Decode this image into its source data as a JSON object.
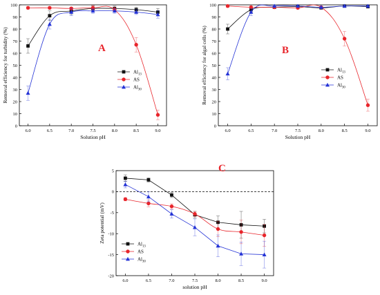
{
  "colors": {
    "Al13": "#111111",
    "AS": "#e8252b",
    "Al30": "#2433d6",
    "axis": "#000000",
    "panel_label": "#e8252b"
  },
  "chart_data": [
    {
      "type": "line",
      "panel_label": "A",
      "xlabel": "Solution pH",
      "ylabel": "Removal efficiency for turbidity (%)",
      "xlim": [
        5.8,
        9.2
      ],
      "ylim": [
        0,
        100
      ],
      "x_ticks": [
        "6.0",
        "6.5",
        "7.0",
        "7.5",
        "8.0",
        "8.5",
        "9.0"
      ],
      "y_ticks": [
        "0",
        "10",
        "20",
        "30",
        "40",
        "50",
        "60",
        "70",
        "80",
        "90",
        "100"
      ],
      "legend_position": "right-middle",
      "series": [
        {
          "name": "Al",
          "sub": "13",
          "marker": "square",
          "x": [
            6.0,
            6.5,
            7.0,
            7.5,
            8.0,
            8.5,
            9.0
          ],
          "y": [
            66,
            91,
            95,
            97,
            97,
            96,
            94
          ],
          "err": [
            6,
            4,
            3,
            2,
            2,
            2,
            3
          ]
        },
        {
          "name": "AS",
          "sub": "",
          "marker": "circle",
          "x": [
            6.0,
            6.5,
            7.0,
            7.5,
            8.0,
            8.5,
            9.0
          ],
          "y": [
            97.5,
            97.5,
            97,
            97.5,
            96,
            67,
            9
          ],
          "err": [
            1,
            1,
            1,
            2,
            2,
            6,
            4
          ]
        },
        {
          "name": "Al",
          "sub": "30",
          "marker": "triangle",
          "x": [
            6.0,
            6.5,
            7.0,
            7.5,
            8.0,
            8.5,
            9.0
          ],
          "y": [
            27,
            84,
            94,
            95,
            95,
            94,
            92
          ],
          "err": [
            6,
            4,
            3,
            2,
            2,
            2,
            3
          ]
        }
      ]
    },
    {
      "type": "line",
      "panel_label": "B",
      "xlabel": "Solution pH",
      "ylabel": "Removal efficiency for algal cells (%)",
      "xlim": [
        5.8,
        9.2
      ],
      "ylim": [
        0,
        100
      ],
      "x_ticks": [
        "6.0",
        "6.5",
        "7.0",
        "7.5",
        "8.0",
        "8.5",
        "9.0"
      ],
      "y_ticks": [
        "0",
        "10",
        "20",
        "30",
        "40",
        "50",
        "60",
        "70",
        "80",
        "90",
        "100"
      ],
      "legend_position": "right-middle",
      "series": [
        {
          "name": "Al",
          "sub": "13",
          "marker": "square",
          "x": [
            6.0,
            6.5,
            7.0,
            7.5,
            8.0,
            8.5,
            9.0
          ],
          "y": [
            80,
            96,
            98,
            98.5,
            97.5,
            99,
            98.5
          ],
          "err": [
            4,
            2,
            1,
            1,
            1,
            1,
            1
          ]
        },
        {
          "name": "AS",
          "sub": "",
          "marker": "circle",
          "x": [
            6.0,
            6.5,
            7.0,
            7.5,
            8.0,
            8.5,
            9.0
          ],
          "y": [
            99,
            98,
            98,
            97.5,
            98,
            72,
            17
          ],
          "err": [
            1,
            1,
            1,
            1,
            1,
            6,
            5
          ]
        },
        {
          "name": "Al",
          "sub": "30",
          "marker": "triangle",
          "x": [
            6.0,
            6.5,
            7.0,
            7.5,
            8.0,
            8.5,
            9.0
          ],
          "y": [
            43,
            94,
            99,
            99,
            98,
            99,
            99
          ],
          "err": [
            5,
            3,
            1,
            1,
            1,
            1,
            1
          ]
        }
      ]
    },
    {
      "type": "line",
      "panel_label": "C",
      "xlabel": "solution pH",
      "ylabel": "Zeta potential (mV)",
      "xlim": [
        5.8,
        9.2
      ],
      "ylim": [
        -20,
        5
      ],
      "x_ticks": [
        "6.0",
        "6.5",
        "7.0",
        "7.5",
        "8.0",
        "8.5",
        "9.0"
      ],
      "y_ticks": [
        "-20",
        "-15",
        "-10",
        "-5",
        "0",
        "5"
      ],
      "zero_line": true,
      "legend_position": "bottom-left",
      "series": [
        {
          "name": "Al",
          "sub": "13",
          "marker": "square",
          "x": [
            6.0,
            6.5,
            7.0,
            7.5,
            8.0,
            8.5,
            9.0
          ],
          "y": [
            3.2,
            2.8,
            -0.8,
            -5.5,
            -7.3,
            -7.9,
            -8.2
          ],
          "err": [
            0.8,
            0.5,
            0.6,
            0.8,
            1.5,
            3.2,
            1.6
          ]
        },
        {
          "name": "AS",
          "sub": "",
          "marker": "circle",
          "x": [
            6.0,
            6.5,
            7.0,
            7.5,
            8.0,
            8.5,
            9.0
          ],
          "y": [
            -1.8,
            -2.8,
            -3.5,
            -5.3,
            -8.9,
            -9.6,
            -10.4
          ],
          "err": [
            0.4,
            0.8,
            0.6,
            0.6,
            1.8,
            2.8,
            2.6
          ]
        },
        {
          "name": "Al",
          "sub": "30",
          "marker": "triangle",
          "x": [
            6.0,
            6.5,
            7.0,
            7.5,
            8.0,
            8.5,
            9.0
          ],
          "y": [
            1.7,
            -1.2,
            -5.3,
            -8.5,
            -12.9,
            -14.8,
            -15.0
          ],
          "err": [
            0.8,
            1.2,
            1.0,
            2.0,
            2.6,
            2.8,
            3.2
          ]
        }
      ]
    }
  ]
}
